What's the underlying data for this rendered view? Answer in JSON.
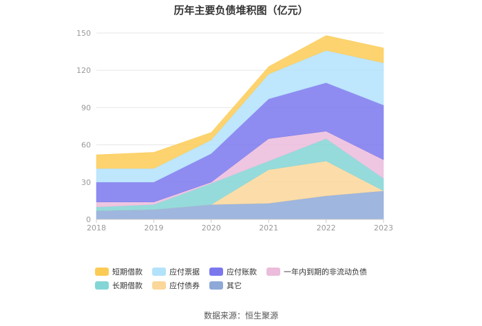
{
  "chart_data": {
    "type": "area",
    "stacked": true,
    "title": "历年主要负债堆积图（亿元）",
    "x": [
      "2018",
      "2019",
      "2020",
      "2021",
      "2022",
      "2023"
    ],
    "ylim": [
      0,
      150
    ],
    "yticks": [
      0,
      30,
      60,
      90,
      120,
      150
    ],
    "series": [
      {
        "name": "其它",
        "color": "#8ea9d8",
        "values": [
          7,
          8,
          12,
          13,
          19,
          23
        ]
      },
      {
        "name": "应付债券",
        "color": "#fbd79a",
        "values": [
          0,
          0,
          0,
          27,
          28,
          0
        ]
      },
      {
        "name": "长期借款",
        "color": "#84d5d6",
        "values": [
          3,
          4,
          17,
          7,
          18,
          10
        ]
      },
      {
        "name": "一年内到期的非流动负债",
        "color": "#ebbcdc",
        "values": [
          4,
          2,
          1,
          18,
          6,
          15
        ]
      },
      {
        "name": "应付账款",
        "color": "#7b78ee",
        "values": [
          16,
          16,
          23,
          32,
          39,
          44
        ]
      },
      {
        "name": "应付票据",
        "color": "#b3e2fb",
        "values": [
          11,
          11,
          11,
          20,
          26,
          34
        ]
      },
      {
        "name": "短期借款",
        "color": "#fbcb55",
        "values": [
          11,
          13,
          6,
          6,
          12,
          12
        ]
      }
    ],
    "legend_order": [
      "短期借款",
      "应付票据",
      "应付账款",
      "一年内到期的非流动负债",
      "长期借款",
      "应付债券",
      "其它"
    ]
  },
  "source": "数据来源：恒生聚源"
}
